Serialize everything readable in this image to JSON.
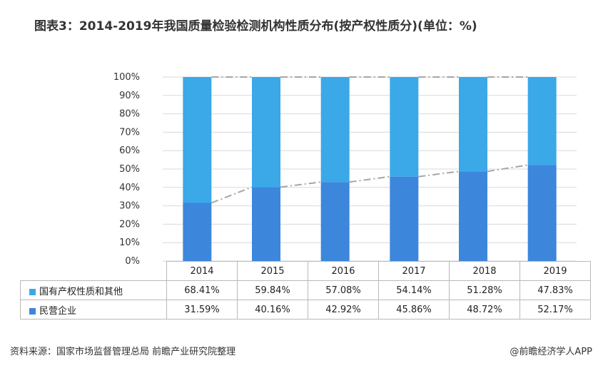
{
  "title": "图表3：2014-2019年我国质量检验检测机构性质分布(按产权性质分)(单位：%)",
  "source": "资料来源：国家市场监督管理总局 前瞻产业研究院整理",
  "brand": "@前瞻经济学人APP",
  "colors": {
    "state_owned": "#3ba8e8",
    "private": "#3c87dc",
    "trend_line": "#a6a6a6",
    "grid": "#d9d9d9",
    "table_border": "#b9b9b9"
  },
  "chart_data": {
    "type": "bar",
    "stacked": true,
    "categories": [
      "2014",
      "2015",
      "2016",
      "2017",
      "2018",
      "2019"
    ],
    "series": [
      {
        "name": "国有产权性质和其他",
        "values": [
          68.41,
          59.84,
          57.08,
          54.14,
          51.28,
          47.83
        ]
      },
      {
        "name": "民营企业",
        "values": [
          31.59,
          40.16,
          42.92,
          45.86,
          48.72,
          52.17
        ]
      }
    ],
    "ylim": [
      0,
      100
    ],
    "yticks": [
      "0%",
      "10%",
      "20%",
      "30%",
      "40%",
      "50%",
      "60%",
      "70%",
      "80%",
      "90%",
      "100%"
    ],
    "table": {
      "rows": [
        {
          "label": "国有产权性质和其他",
          "cells": [
            "68.41%",
            "59.84%",
            "57.08%",
            "54.14%",
            "51.28%",
            "47.83%"
          ]
        },
        {
          "label": "民营企业",
          "cells": [
            "31.59%",
            "40.16%",
            "42.92%",
            "45.86%",
            "48.72%",
            "52.17%"
          ]
        }
      ]
    }
  }
}
